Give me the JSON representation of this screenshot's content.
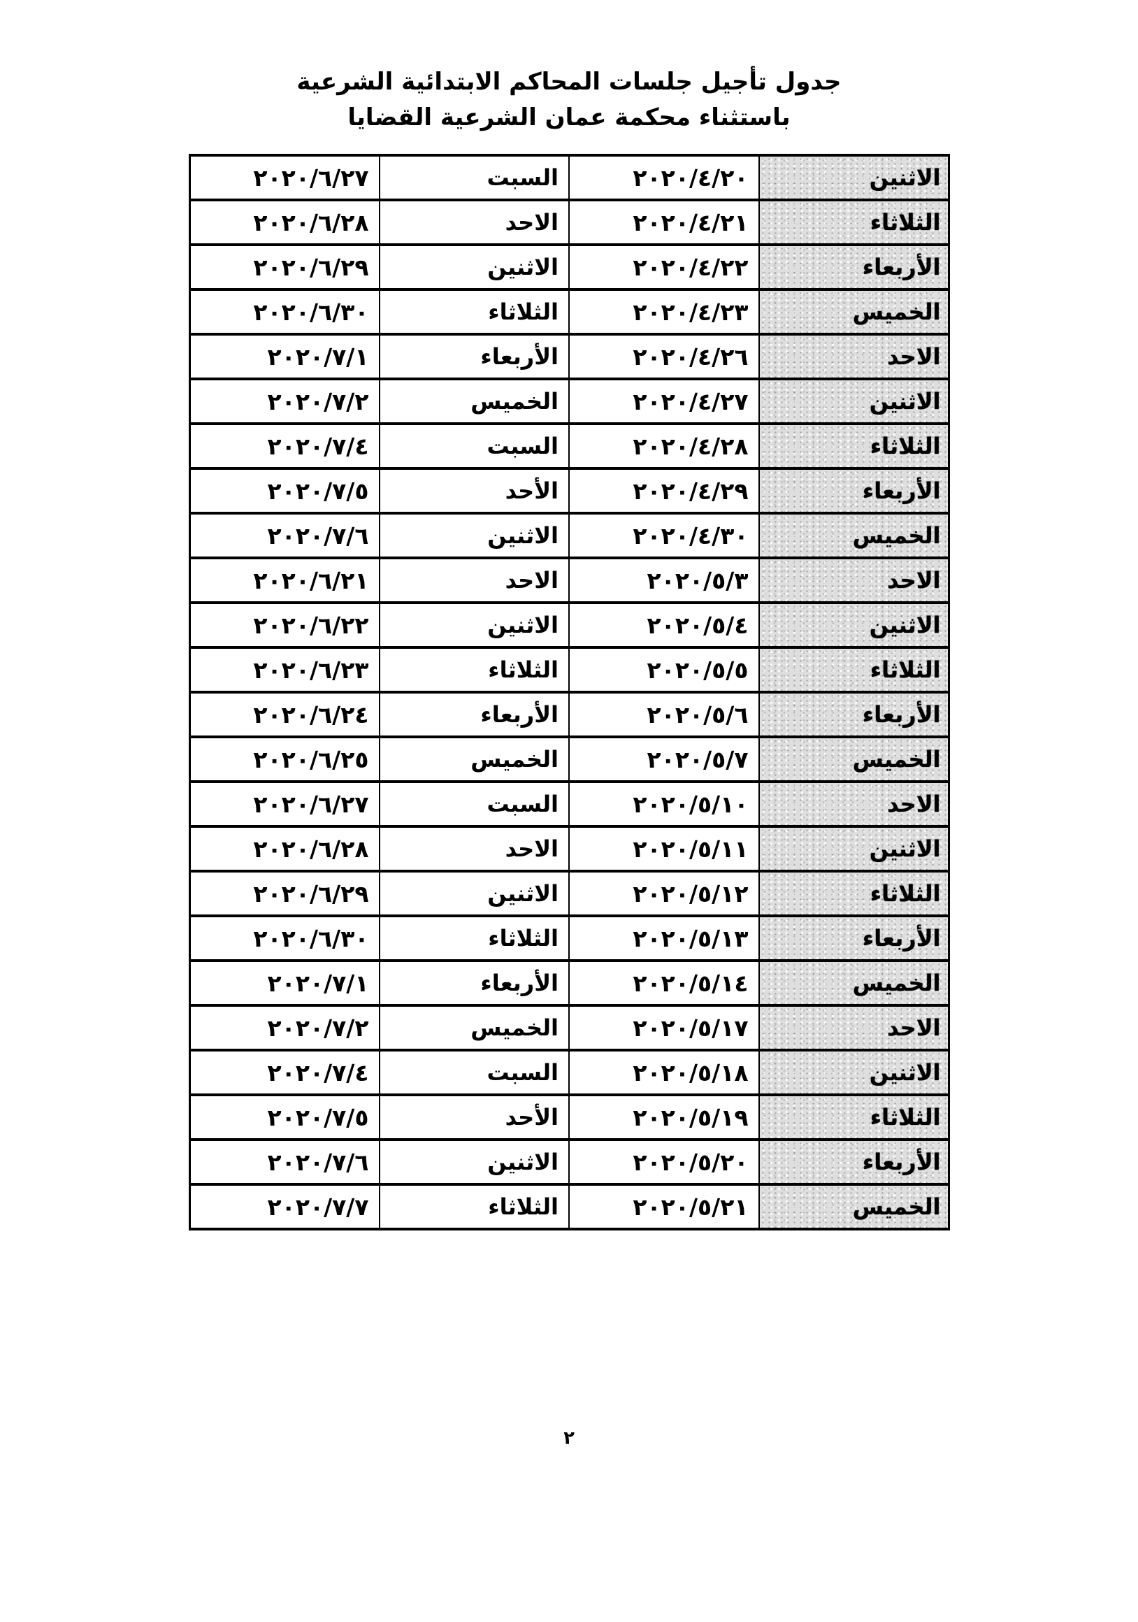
{
  "title": {
    "line1": "جدول تأجيل جلسات المحاكم الابتدائية الشرعية",
    "line2": "باستثناء محكمة عمان الشرعية القضايا"
  },
  "page": {
    "number": "٢"
  },
  "colors": {
    "text": "#000000",
    "table_border": "#000000",
    "day_cell_background": "#dedede",
    "page_background": "#ffffff"
  },
  "table": {
    "rows": [
      {
        "day": "الاثنين",
        "date": "٢٠٢٠/٤/٢٠",
        "new_day": "السبت",
        "new_date": "٢٠٢٠/٦/٢٧"
      },
      {
        "day": "الثلاثاء",
        "date": "٢٠٢٠/٤/٢١",
        "new_day": "الاحد",
        "new_date": "٢٠٢٠/٦/٢٨"
      },
      {
        "day": "الأربعاء",
        "date": "٢٠٢٠/٤/٢٢",
        "new_day": "الاثنين",
        "new_date": "٢٠٢٠/٦/٢٩"
      },
      {
        "day": "الخميس",
        "date": "٢٠٢٠/٤/٢٣",
        "new_day": "الثلاثاء",
        "new_date": "٢٠٢٠/٦/٣٠"
      },
      {
        "day": "الاحد",
        "date": "٢٠٢٠/٤/٢٦",
        "new_day": "الأربعاء",
        "new_date": "٢٠٢٠/٧/١"
      },
      {
        "day": "الاثنين",
        "date": "٢٠٢٠/٤/٢٧",
        "new_day": "الخميس",
        "new_date": "٢٠٢٠/٧/٢"
      },
      {
        "day": "الثلاثاء",
        "date": "٢٠٢٠/٤/٢٨",
        "new_day": "السبت",
        "new_date": "٢٠٢٠/٧/٤"
      },
      {
        "day": "الأربعاء",
        "date": "٢٠٢٠/٤/٢٩",
        "new_day": "الأحد",
        "new_date": "٢٠٢٠/٧/٥"
      },
      {
        "day": "الخميس",
        "date": "٢٠٢٠/٤/٣٠",
        "new_day": "الاثنين",
        "new_date": "٢٠٢٠/٧/٦"
      },
      {
        "day": "الاحد",
        "date": "٢٠٢٠/٥/٣",
        "new_day": "الاحد",
        "new_date": "٢٠٢٠/٦/٢١"
      },
      {
        "day": "الاثنين",
        "date": "٢٠٢٠/٥/٤",
        "new_day": "الاثنين",
        "new_date": "٢٠٢٠/٦/٢٢"
      },
      {
        "day": "الثلاثاء",
        "date": "٢٠٢٠/٥/٥",
        "new_day": "الثلاثاء",
        "new_date": "٢٠٢٠/٦/٢٣"
      },
      {
        "day": "الأربعاء",
        "date": "٢٠٢٠/٥/٦",
        "new_day": "الأربعاء",
        "new_date": "٢٠٢٠/٦/٢٤"
      },
      {
        "day": "الخميس",
        "date": "٢٠٢٠/٥/٧",
        "new_day": "الخميس",
        "new_date": "٢٠٢٠/٦/٢٥"
      },
      {
        "day": "الاحد",
        "date": "٢٠٢٠/٥/١٠",
        "new_day": "السبت",
        "new_date": "٢٠٢٠/٦/٢٧"
      },
      {
        "day": "الاثنين",
        "date": "٢٠٢٠/٥/١١",
        "new_day": "الاحد",
        "new_date": "٢٠٢٠/٦/٢٨"
      },
      {
        "day": "الثلاثاء",
        "date": "٢٠٢٠/٥/١٢",
        "new_day": "الاثنين",
        "new_date": "٢٠٢٠/٦/٢٩"
      },
      {
        "day": "الأربعاء",
        "date": "٢٠٢٠/٥/١٣",
        "new_day": "الثلاثاء",
        "new_date": "٢٠٢٠/٦/٣٠"
      },
      {
        "day": "الخميس",
        "date": "٢٠٢٠/٥/١٤",
        "new_day": "الأربعاء",
        "new_date": "٢٠٢٠/٧/١"
      },
      {
        "day": "الاحد",
        "date": "٢٠٢٠/٥/١٧",
        "new_day": "الخميس",
        "new_date": "٢٠٢٠/٧/٢"
      },
      {
        "day": "الاثنين",
        "date": "٢٠٢٠/٥/١٨",
        "new_day": "السبت",
        "new_date": "٢٠٢٠/٧/٤"
      },
      {
        "day": "الثلاثاء",
        "date": "٢٠٢٠/٥/١٩",
        "new_day": "الأحد",
        "new_date": "٢٠٢٠/٧/٥"
      },
      {
        "day": "الأربعاء",
        "date": "٢٠٢٠/٥/٢٠",
        "new_day": "الاثنين",
        "new_date": "٢٠٢٠/٧/٦"
      },
      {
        "day": "الخميس",
        "date": "٢٠٢٠/٥/٢١",
        "new_day": "الثلاثاء",
        "new_date": "٢٠٢٠/٧/٧"
      }
    ]
  }
}
